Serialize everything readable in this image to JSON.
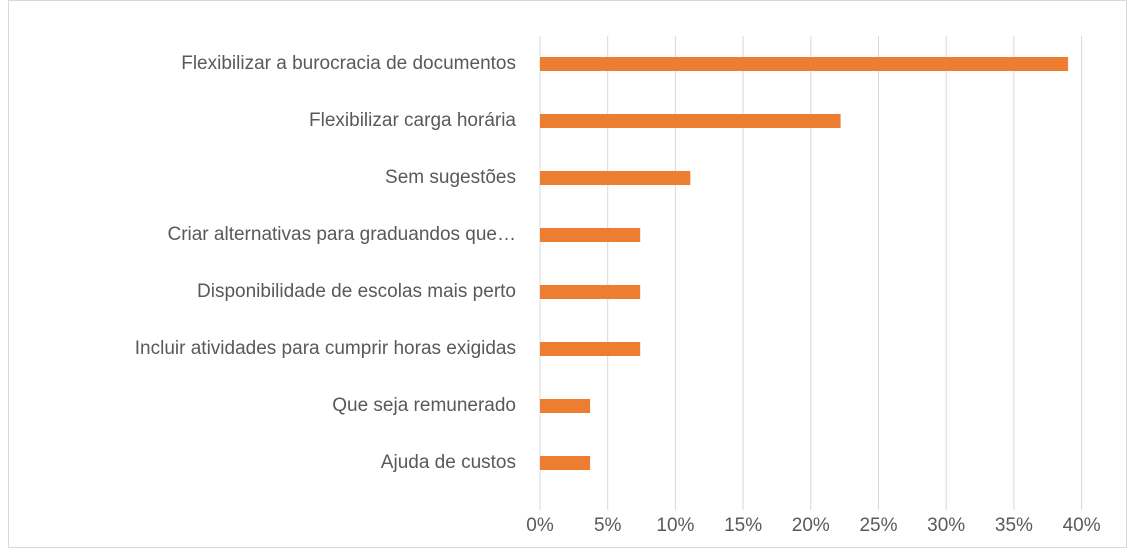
{
  "chart_data": {
    "type": "barh",
    "categories": [
      "Flexibilizar a burocracia de documentos",
      "Flexibilizar carga horária",
      "Sem sugestões",
      "Criar alternativas para graduandos que…",
      "Disponibilidade de escolas mais perto",
      "Incluir atividades para cumprir horas exigidas",
      "Que seja remunerado",
      "Ajuda de custos"
    ],
    "values": [
      39,
      22.2,
      11.1,
      7.4,
      7.4,
      7.4,
      3.7,
      3.7
    ],
    "color": "#ed7d31",
    "xlim": [
      0,
      40
    ],
    "xticks": [
      {
        "value": 0,
        "label": "0%"
      },
      {
        "value": 5,
        "label": "5%"
      },
      {
        "value": 10,
        "label": "10%"
      },
      {
        "value": 15,
        "label": "15%"
      },
      {
        "value": 20,
        "label": "20%"
      },
      {
        "value": 25,
        "label": "25%"
      },
      {
        "value": 30,
        "label": "30%"
      },
      {
        "value": 35,
        "label": "35%"
      },
      {
        "value": 40,
        "label": "40%"
      }
    ],
    "grid": true
  }
}
